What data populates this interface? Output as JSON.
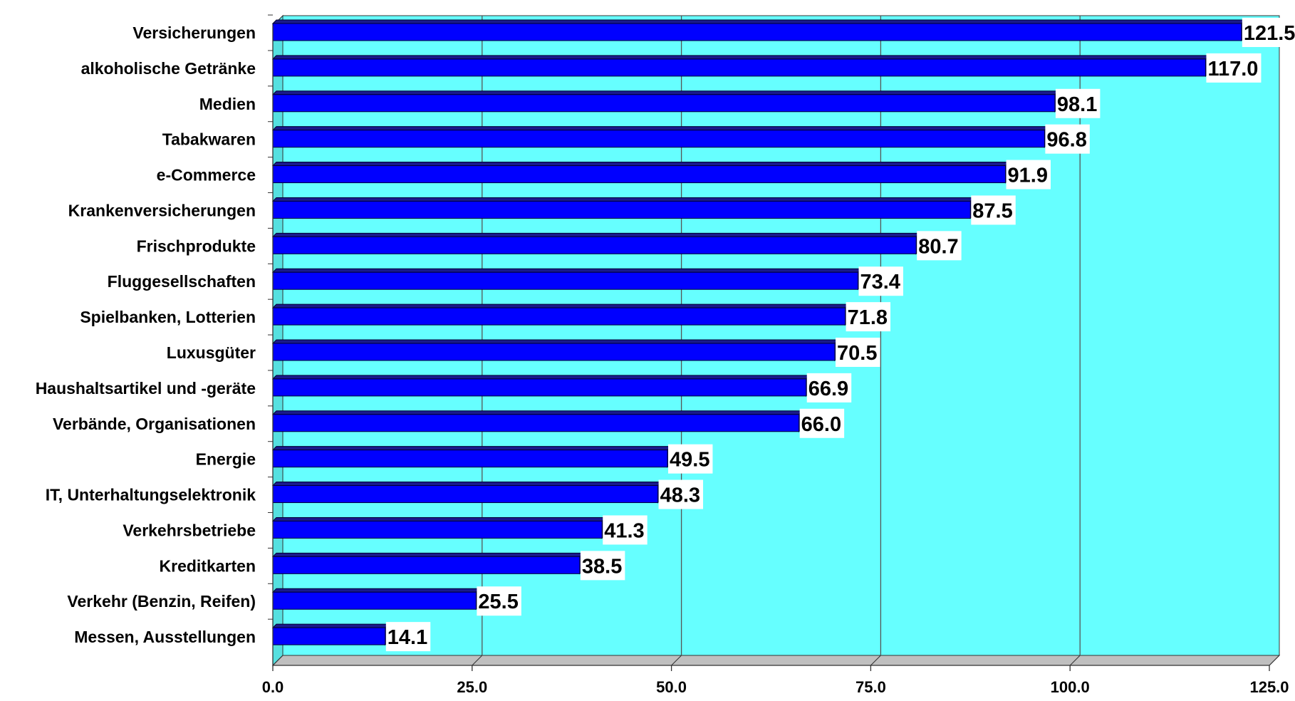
{
  "chart_data": {
    "type": "bar",
    "orientation": "horizontal",
    "categories": [
      "Versicherungen",
      "alkoholische Getränke",
      "Medien",
      "Tabakwaren",
      "e-Commerce",
      "Krankenversicherungen",
      "Frischprodukte",
      "Fluggesellschaften",
      "Spielbanken, Lotterien",
      "Luxusgüter",
      "Haushaltsartikel und -geräte",
      "Verbände, Organisationen",
      "Energie",
      "IT, Unterhaltungselektronik",
      "Verkehrsbetriebe",
      "Kreditkarten",
      "Verkehr (Benzin, Reifen)",
      "Messen, Ausstellungen"
    ],
    "values": [
      121.5,
      117.0,
      98.1,
      96.8,
      91.9,
      87.5,
      80.7,
      73.4,
      71.8,
      70.5,
      66.9,
      66.0,
      49.5,
      48.3,
      41.3,
      38.5,
      25.5,
      14.1
    ],
    "value_labels": [
      "121.5",
      "117.0",
      "98.1",
      "96.8",
      "91.9",
      "87.5",
      "80.7",
      "73.4",
      "71.8",
      "70.5",
      "66.9",
      "66.0",
      "49.5",
      "48.3",
      "41.3",
      "38.5",
      "25.5",
      "14.1"
    ],
    "xticks": [
      0,
      25,
      50,
      75,
      100,
      125
    ],
    "xtick_labels": [
      "0.0",
      "25.0",
      "50.0",
      "75.0",
      "100.0",
      "125.0"
    ],
    "xlim": [
      0,
      125
    ],
    "title": "",
    "xlabel": "",
    "ylabel": "",
    "grid": true,
    "legend": "none",
    "colors": {
      "plot_background": "#66ffff",
      "plot_side": "#55e0e0",
      "plot_floor": "#bfbfbf",
      "bar_front": "#0000ff",
      "bar_top": "#1a1a8c",
      "bar_shadow": "#000066",
      "gridline": "#555555",
      "axis": "#333333",
      "value_label_background": "#ffffff"
    }
  }
}
